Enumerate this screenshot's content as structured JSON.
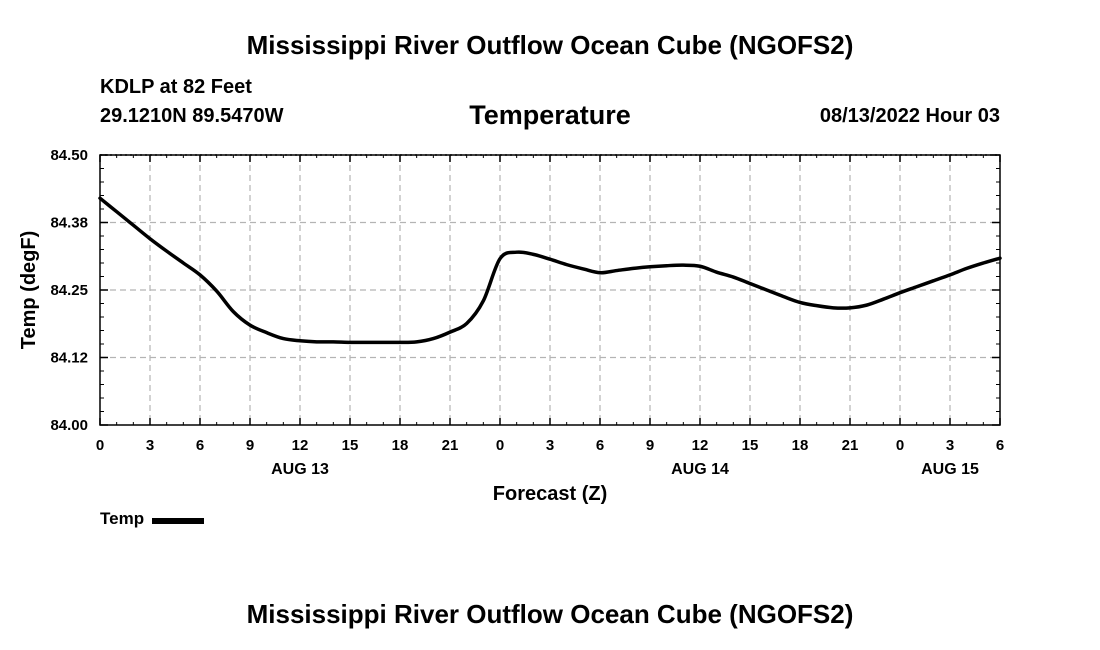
{
  "header": {
    "title": "Mississippi River Outflow Ocean Cube (NGOFS2)",
    "station": "KDLP at 82 Feet",
    "coords": "29.1210N  89.5470W",
    "datetime": "08/13/2022 Hour 03"
  },
  "footer": {
    "title": "Mississippi River Outflow Ocean Cube (NGOFS2)"
  },
  "legend": {
    "label": "Temp"
  },
  "colors": {
    "line": "#000000",
    "grid": "#b4b4b4",
    "background": "#ffffff"
  },
  "chart_data": {
    "type": "line",
    "title": "Temperature",
    "xlabel": "Forecast (Z)",
    "ylabel": "Temp (degF)",
    "xlim": [
      0,
      54
    ],
    "ylim": [
      84.0,
      84.5
    ],
    "x_tick_labels": [
      "0",
      "3",
      "6",
      "9",
      "12",
      "15",
      "18",
      "21",
      "0",
      "3",
      "6",
      "9",
      "12",
      "15",
      "18",
      "21",
      "0",
      "3",
      "6"
    ],
    "date_labels": [
      {
        "hour": 12,
        "label": "AUG 13"
      },
      {
        "hour": 36,
        "label": "AUG 14"
      },
      {
        "hour": 51,
        "label": "AUG 15"
      }
    ],
    "y_ticks": [
      84.0,
      84.125,
      84.25,
      84.375,
      84.5
    ],
    "y_tick_labels": [
      "84.00",
      "84.12",
      "84.25",
      "84.38",
      "84.50"
    ],
    "grid": true,
    "series": [
      {
        "name": "Temp",
        "x": [
          0,
          1,
          2,
          3,
          4,
          5,
          6,
          7,
          8,
          9,
          10,
          11,
          12,
          13,
          14,
          15,
          16,
          17,
          18,
          19,
          20,
          21,
          22,
          23,
          24,
          25,
          26,
          27,
          28,
          29,
          30,
          31,
          32,
          33,
          34,
          35,
          36,
          37,
          38,
          39,
          40,
          41,
          42,
          43,
          44,
          45,
          46,
          47,
          48,
          49,
          50,
          51,
          52,
          53,
          54
        ],
        "values": [
          84.42,
          84.395,
          84.37,
          84.345,
          84.322,
          84.3,
          84.278,
          84.248,
          84.21,
          84.185,
          84.171,
          84.16,
          84.156,
          84.154,
          84.154,
          84.153,
          84.153,
          84.153,
          84.153,
          84.154,
          84.16,
          84.172,
          84.188,
          84.23,
          84.308,
          84.32,
          84.316,
          84.307,
          84.297,
          84.289,
          84.282,
          84.286,
          84.29,
          84.293,
          84.295,
          84.296,
          84.294,
          84.283,
          84.274,
          84.262,
          84.25,
          84.238,
          84.227,
          84.221,
          84.217,
          84.217,
          84.222,
          84.233,
          84.245,
          84.256,
          84.267,
          84.278,
          84.29,
          84.3,
          84.309
        ]
      }
    ]
  }
}
